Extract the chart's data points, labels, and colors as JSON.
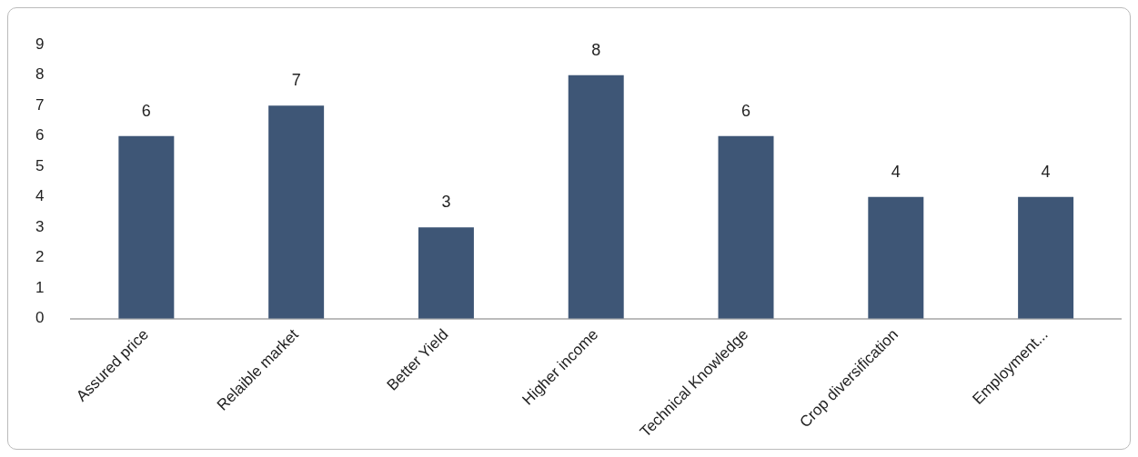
{
  "chart_data": {
    "type": "bar",
    "categories": [
      "Assured price",
      "Relaible market",
      "Better Yield",
      "Higher income",
      "Technical Knowledge",
      "Crop diversification",
      "Employment..."
    ],
    "values": [
      6,
      7,
      3,
      8,
      6,
      4,
      4
    ],
    "color": "#3e5676",
    "ylim": [
      0,
      9
    ],
    "yticks": [
      0,
      1,
      2,
      3,
      4,
      5,
      6,
      7,
      8,
      9
    ],
    "grid": false,
    "legend": false,
    "data_labels": true
  }
}
